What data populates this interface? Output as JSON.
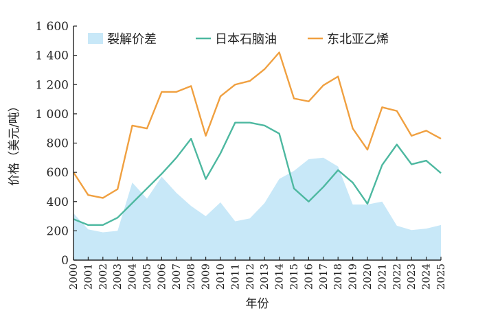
{
  "chart_data": {
    "type": "line",
    "title": "",
    "xlabel": "年份",
    "ylabel": "价格（美元/吨）",
    "ylim": [
      0,
      1600
    ],
    "yticks": [
      0,
      200,
      400,
      600,
      800,
      1000,
      1200,
      1400,
      1600
    ],
    "ytick_labels": [
      "0",
      "200",
      "400",
      "600",
      "800",
      "1 000",
      "1 200",
      "1 400",
      "1 600"
    ],
    "x": [
      "2000",
      "2001",
      "2002",
      "2003",
      "2004",
      "2005",
      "2006",
      "2007",
      "2008",
      "2009",
      "2010",
      "2011",
      "2012",
      "2013",
      "2014",
      "2015",
      "2016",
      "2017",
      "2018",
      "2019",
      "2020",
      "2021",
      "2022",
      "2023",
      "2024",
      "2025"
    ],
    "legend_position": "top",
    "series": [
      {
        "name": "裂解价差",
        "kind": "area",
        "color": "#c8e8f8",
        "values": [
          320,
          210,
          190,
          200,
          530,
          420,
          570,
          460,
          370,
          300,
          395,
          265,
          285,
          390,
          555,
          610,
          690,
          700,
          640,
          380,
          380,
          400,
          235,
          205,
          215,
          240
        ]
      },
      {
        "name": "日本石脑油",
        "kind": "line",
        "color": "#4db8a0",
        "values": [
          280,
          240,
          240,
          290,
          390,
          490,
          590,
          700,
          830,
          555,
          730,
          940,
          940,
          920,
          865,
          490,
          400,
          500,
          615,
          530,
          385,
          650,
          790,
          655,
          680,
          595
        ]
      },
      {
        "name": "东北亚乙烯",
        "kind": "line",
        "color": "#f0a040",
        "values": [
          600,
          445,
          425,
          485,
          920,
          900,
          1150,
          1150,
          1190,
          850,
          1120,
          1200,
          1225,
          1305,
          1420,
          1105,
          1085,
          1195,
          1255,
          900,
          755,
          1045,
          1020,
          850,
          885,
          830
        ]
      }
    ]
  }
}
